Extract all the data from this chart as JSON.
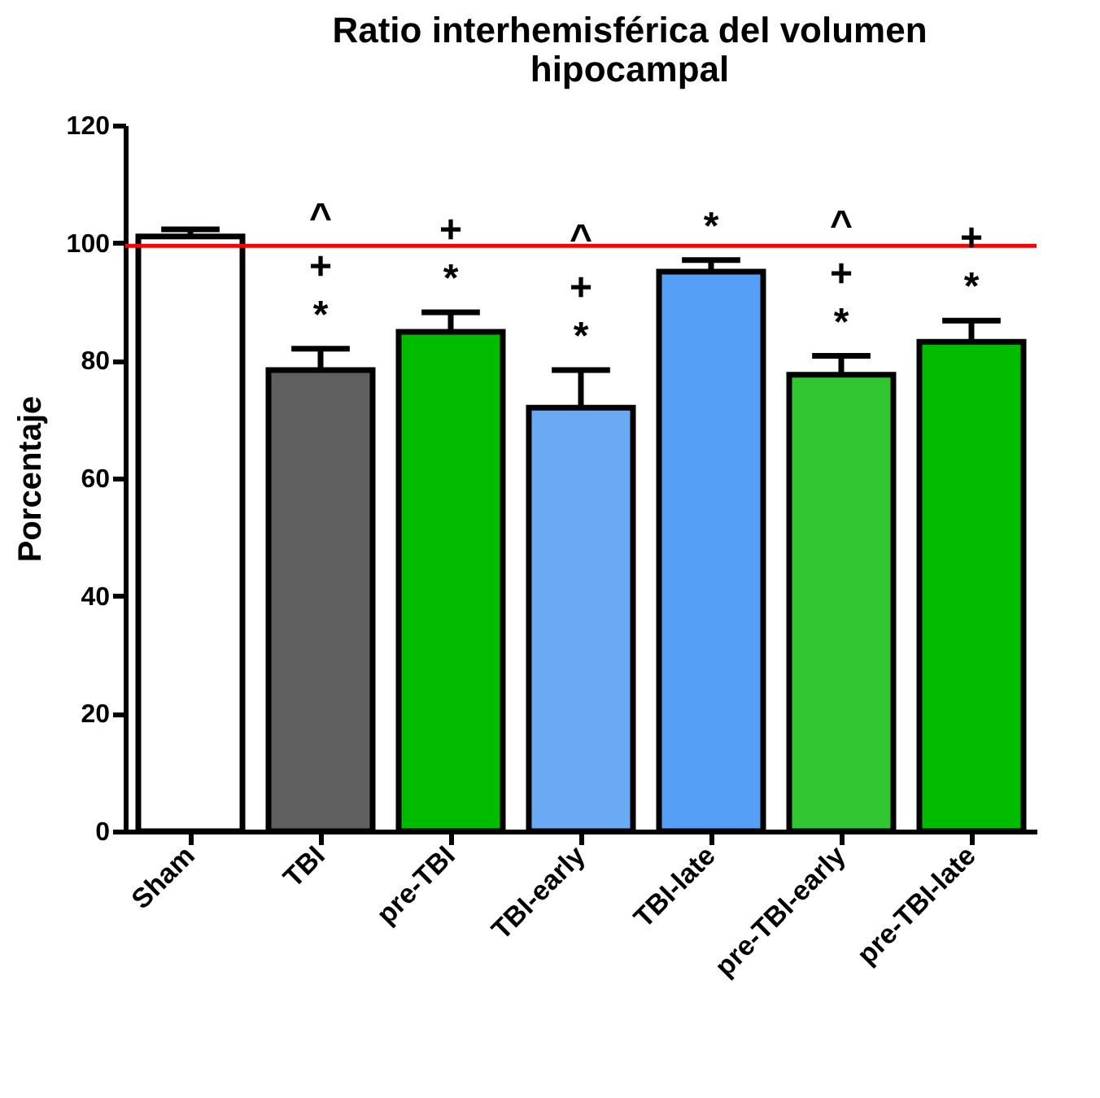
{
  "chart_data": {
    "type": "bar",
    "title": "Ratio interhemisférica del volumen hipocampal",
    "ylabel": "Porcentaje",
    "categories": [
      "Sham",
      "TBI",
      "pre-TBI",
      "TBI-early",
      "TBI-late",
      "pre-TBI-early",
      "pre-TBI-late"
    ],
    "values": [
      101.1,
      78.4,
      84.9,
      72.0,
      95.1,
      77.6,
      83.2
    ],
    "errors": [
      1.2,
      3.6,
      3.3,
      6.4,
      2.0,
      3.2,
      3.6
    ],
    "colors": [
      "#ffffff",
      "#5f5f5f",
      "#00bb00",
      "#6aaaf5",
      "#559ff7",
      "#33c633",
      "#00bb00"
    ],
    "ylim": [
      0,
      120
    ],
    "yticks": [
      0,
      20,
      40,
      60,
      80,
      100,
      120
    ],
    "grid": false,
    "ref_lines": [
      {
        "axis": "y",
        "value": 99.5,
        "color": "#ff0000"
      }
    ],
    "annotations": [
      "^\n+\n*",
      "+\n*",
      "^\n+\n*",
      "*",
      "^\n+\n*",
      "+\n*"
    ]
  }
}
